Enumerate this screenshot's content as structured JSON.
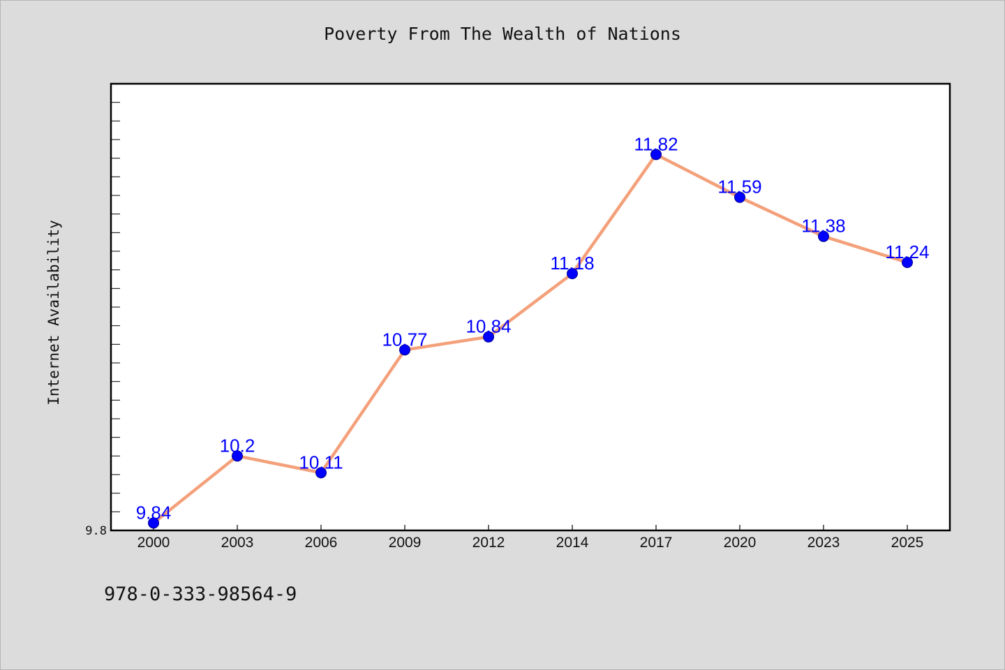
{
  "chart_data": {
    "type": "line",
    "title": "Poverty From The Wealth of Nations",
    "xlabel": "",
    "ylabel": "Internet Availability",
    "categories": [
      "2000",
      "2003",
      "2006",
      "2009",
      "2012",
      "2014",
      "2017",
      "2020",
      "2023",
      "2025"
    ],
    "series": [
      {
        "values": [
          9.84,
          10.2,
          10.11,
          10.77,
          10.84,
          11.18,
          11.82,
          11.59,
          11.38,
          11.24
        ]
      }
    ],
    "data_labels": [
      "9.84",
      "10.2",
      "10.11",
      "10.77",
      "10.84",
      "11.18",
      "11.82",
      "11.59",
      "11.38",
      "11.24"
    ],
    "y_tick_labels": [
      "9.8"
    ],
    "ylim": [
      9.8,
      12.2
    ],
    "grid": false,
    "legend": "none",
    "colors": {
      "line": "#f4a07a",
      "marker": "#0000ff",
      "label": "#0000ff",
      "background": "#dcdcdc",
      "plot_bg": "#ffffff"
    }
  },
  "footer": {
    "isbn": "978-0-333-98564-9"
  }
}
